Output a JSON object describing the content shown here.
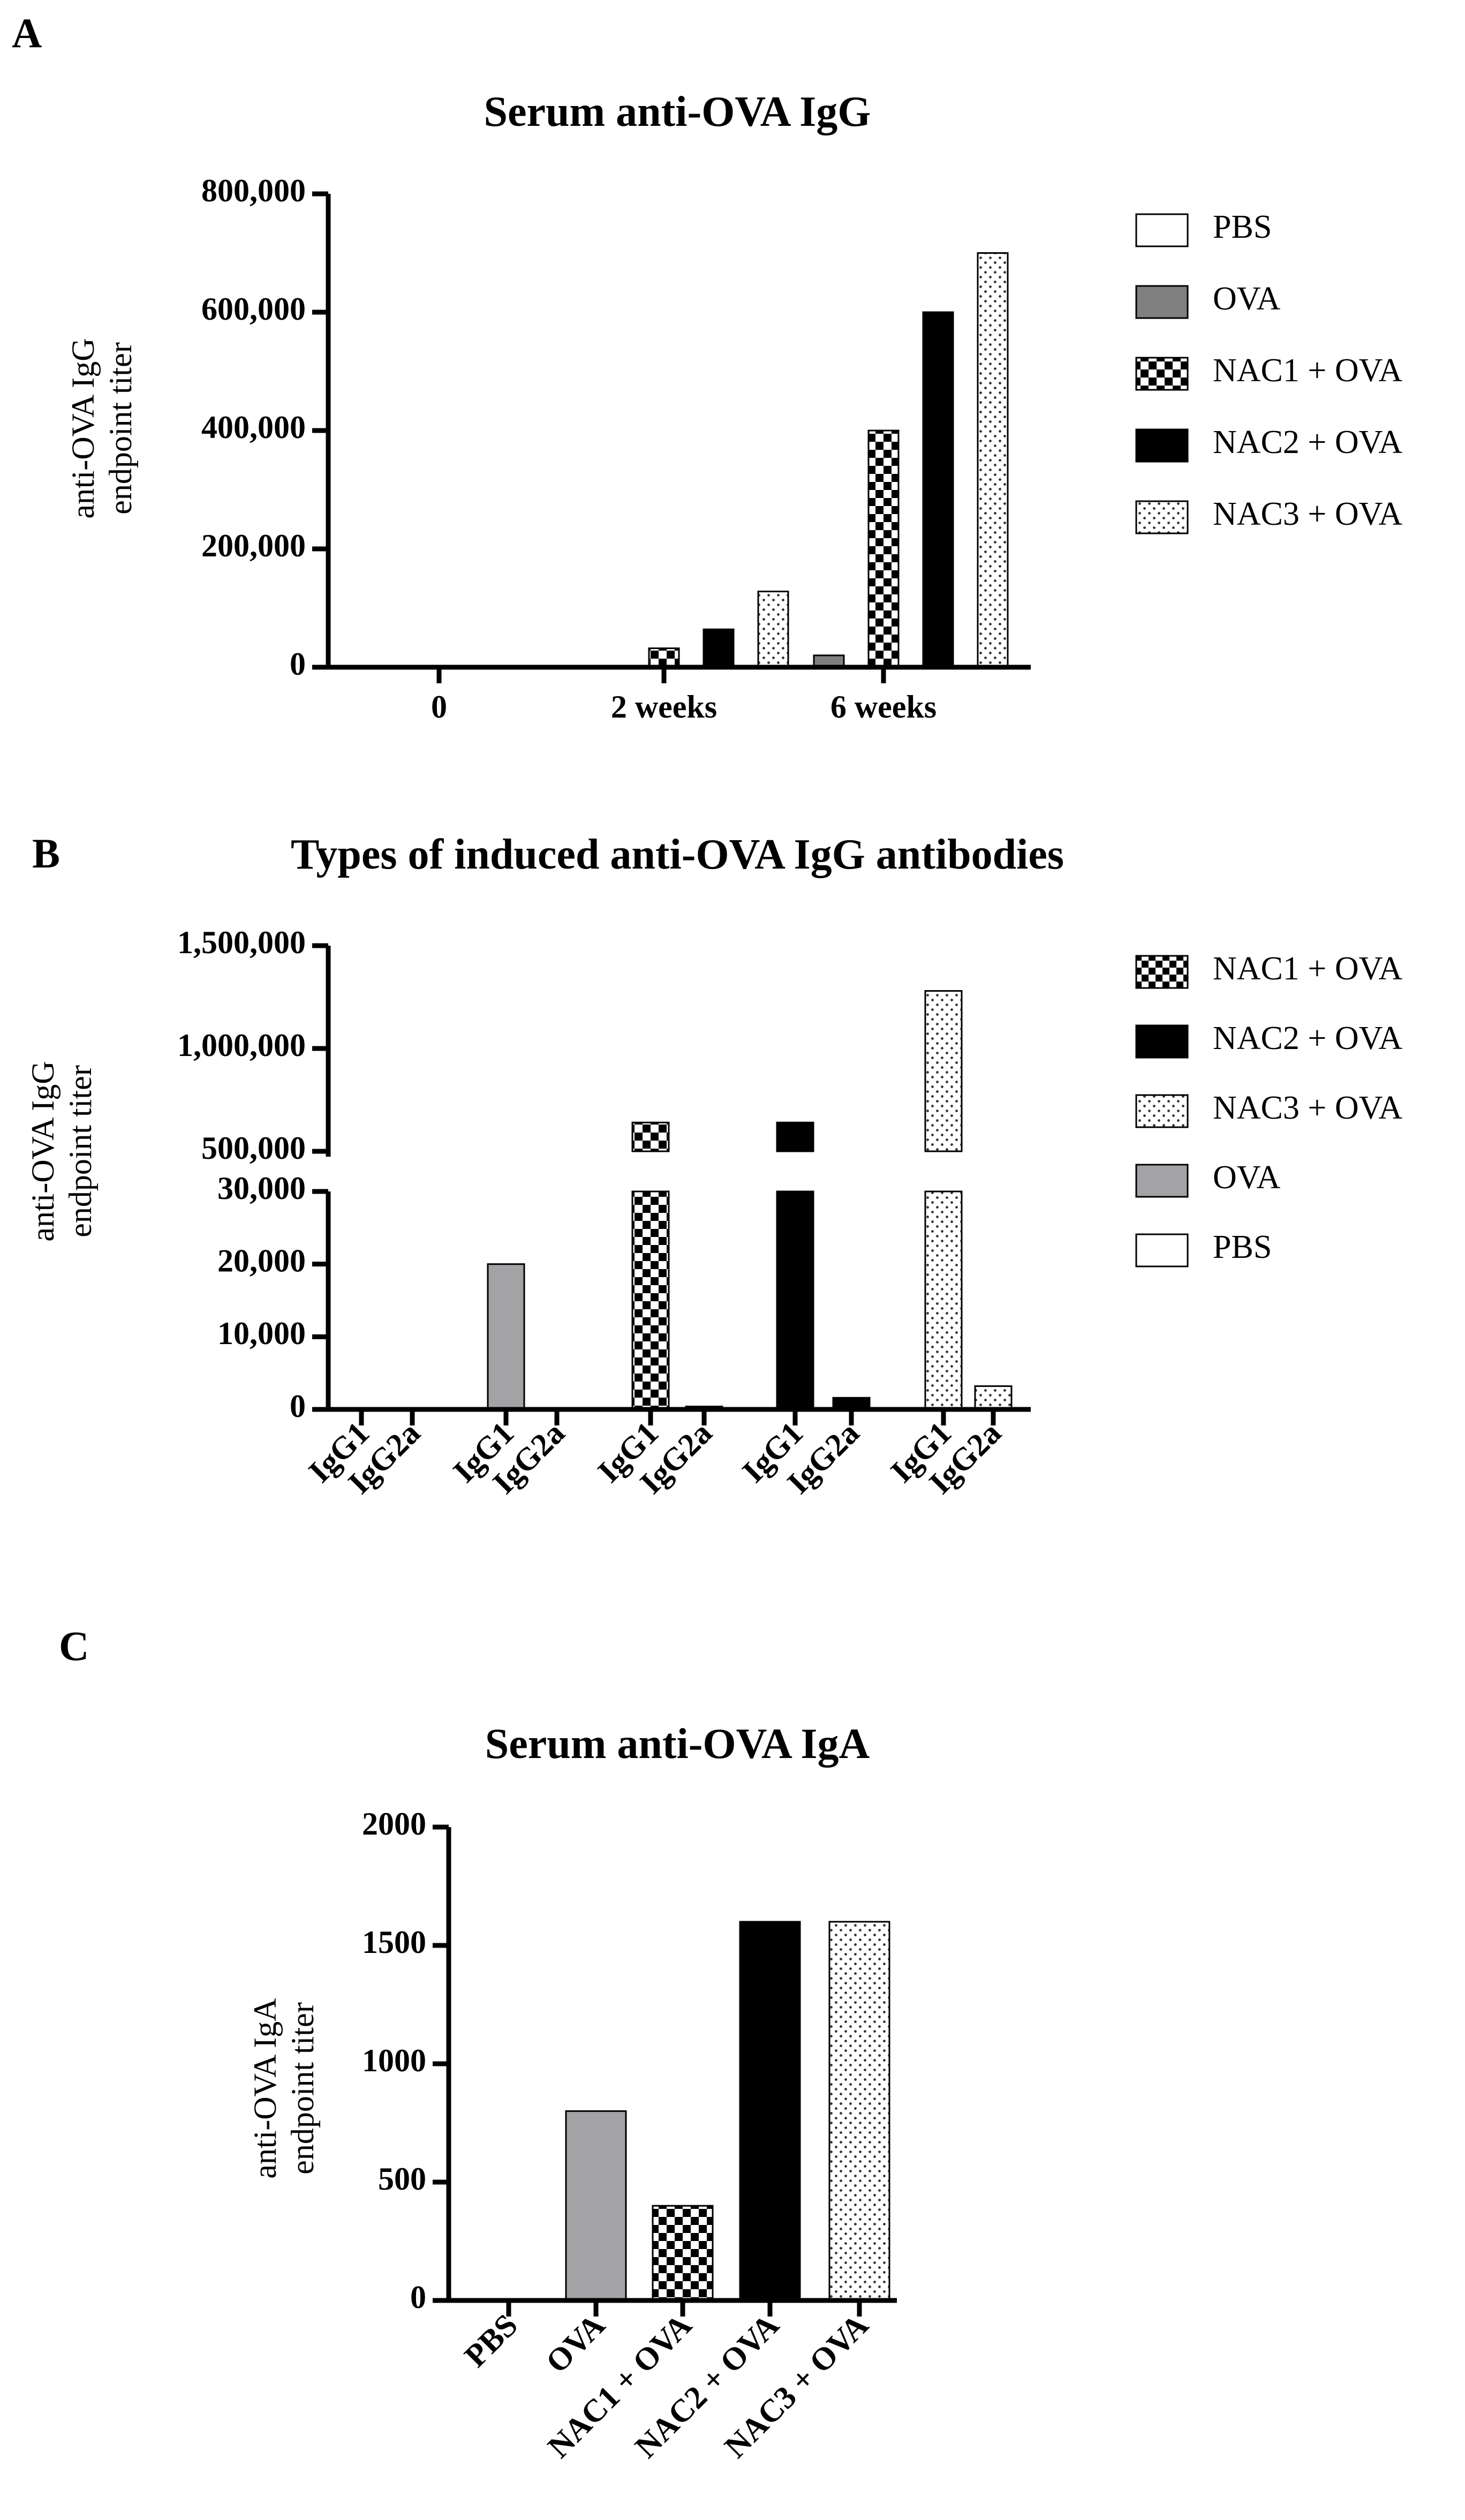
{
  "figure": {
    "panel_letters": [
      "A",
      "B",
      "C"
    ]
  },
  "chart_data": [
    {
      "type": "bar",
      "panel": "A",
      "title": "Serum anti-OVA IgG",
      "ylabel": "anti-OVA IgG endpoint titer",
      "ylabel_lines": [
        "anti-OVA IgG",
        "endpoint titer"
      ],
      "xlabel": "",
      "ylim": [
        0,
        800000
      ],
      "yticks": [
        "800,000",
        "600,000",
        "400,000",
        "200,000",
        "0"
      ],
      "categories": [
        "0",
        "2 weeks",
        "6 weeks"
      ],
      "series": [
        {
          "name": "PBS",
          "pattern": "white",
          "values": [
            0,
            0,
            0
          ]
        },
        {
          "name": "OVA",
          "pattern": "gray",
          "values": [
            0,
            0,
            20000
          ]
        },
        {
          "name": "NAC1 + OVA",
          "pattern": "checker",
          "values": [
            0,
            32000,
            400000
          ]
        },
        {
          "name": "NAC2 + OVA",
          "pattern": "black",
          "values": [
            0,
            64000,
            600000
          ]
        },
        {
          "name": "NAC3 + OVA",
          "pattern": "dots",
          "values": [
            0,
            128000,
            700000
          ]
        }
      ],
      "legend": [
        "PBS",
        "OVA",
        "NAC1 + OVA",
        "NAC2 + OVA",
        "NAC3 + OVA"
      ]
    },
    {
      "type": "bar",
      "panel": "B",
      "title": "Types of induced anti-OVA IgG antibodies",
      "ylabel": "anti-OVA IgG endpoint titer",
      "ylabel_lines": [
        "anti-OVA IgG",
        "endpoint titer"
      ],
      "xlabel": "",
      "axis_break": {
        "lower_range": [
          0,
          30000
        ],
        "upper_range": [
          500000,
          1500000
        ]
      },
      "yticks_upper": [
        "1,500,000",
        "1,000,000",
        "500,000"
      ],
      "yticks_lower": [
        "30,000",
        "20,000",
        "10,000",
        "0"
      ],
      "groups": [
        "PBS",
        "OVA",
        "NAC1 + OVA",
        "NAC2 + OVA",
        "NAC3 + OVA"
      ],
      "subtypes": [
        "IgG1",
        "IgG2a"
      ],
      "series": [
        {
          "name": "PBS",
          "pattern": "white",
          "values": [
            0,
            0
          ]
        },
        {
          "name": "OVA",
          "pattern": "lightgray",
          "values": [
            20000,
            0
          ]
        },
        {
          "name": "NAC1 + OVA",
          "pattern": "checker",
          "values": [
            640000,
            400
          ]
        },
        {
          "name": "NAC2 + OVA",
          "pattern": "black",
          "values": [
            640000,
            1600
          ]
        },
        {
          "name": "NAC3 + OVA",
          "pattern": "dots",
          "values": [
            1280000,
            3200
          ]
        }
      ],
      "legend": [
        "NAC1 + OVA",
        "NAC2 + OVA",
        "NAC3 + OVA",
        "OVA",
        "PBS"
      ]
    },
    {
      "type": "bar",
      "panel": "C",
      "title": "Serum anti-OVA IgA",
      "ylabel": "anti-OVA IgA endpoint titer",
      "ylabel_lines": [
        "anti-OVA IgA",
        "endpoint titer"
      ],
      "xlabel": "",
      "ylim": [
        0,
        2000
      ],
      "yticks": [
        "2000",
        "1500",
        "1000",
        "500",
        "0"
      ],
      "categories": [
        "PBS",
        "OVA",
        "NAC1 + OVA",
        "NAC2 + OVA",
        "NAC3 + OVA"
      ],
      "values": [
        0,
        800,
        400,
        1600,
        1600
      ],
      "patterns": [
        "white",
        "lightgray",
        "checker",
        "black",
        "dots"
      ]
    }
  ]
}
